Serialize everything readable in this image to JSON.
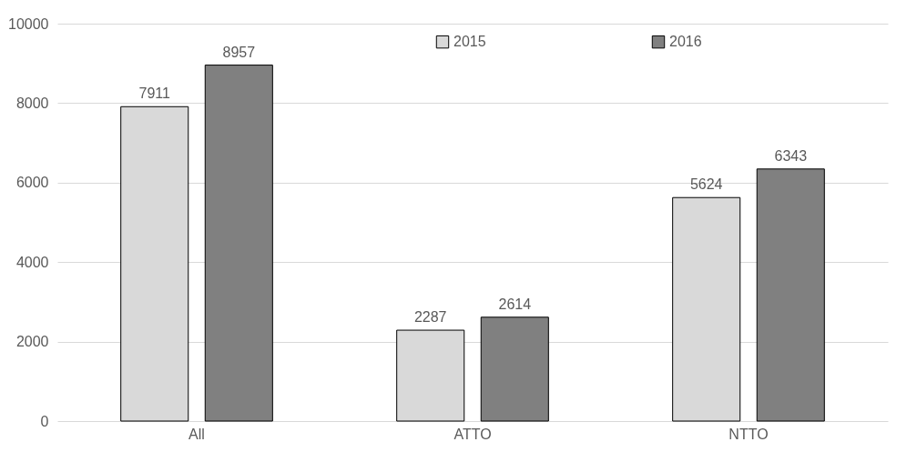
{
  "chart_data": {
    "type": "bar",
    "categories": [
      "All",
      "ATTO",
      "NTTO"
    ],
    "series": [
      {
        "name": "2015",
        "color": "#d9d9d9",
        "values": [
          7911,
          2287,
          5624
        ]
      },
      {
        "name": "2016",
        "color": "#808080",
        "values": [
          8957,
          2614,
          6343
        ]
      }
    ],
    "ylim": [
      0,
      10000
    ],
    "yticks": [
      0,
      2000,
      4000,
      6000,
      8000,
      10000
    ],
    "grid": "y",
    "legend": "top right",
    "data_labels": true
  }
}
